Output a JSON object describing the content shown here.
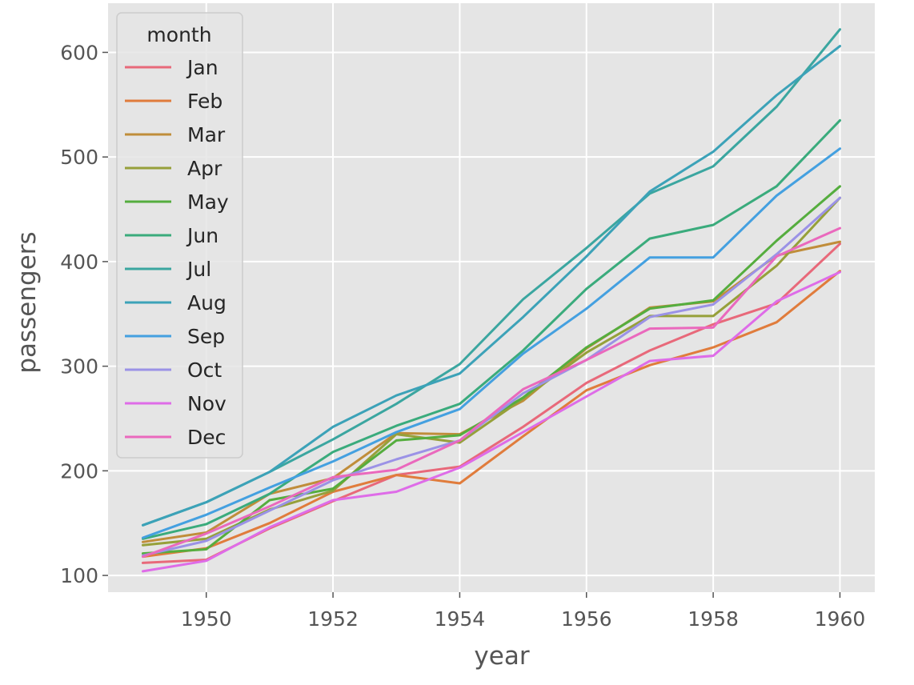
{
  "chart_data": {
    "type": "line",
    "title": "",
    "xlabel": "year",
    "ylabel": "passengers",
    "x": [
      1949,
      1950,
      1951,
      1952,
      1953,
      1954,
      1955,
      1956,
      1957,
      1958,
      1959,
      1960
    ],
    "xlim": [
      1948.45,
      1960.55
    ],
    "ylim": [
      84,
      647
    ],
    "xticks": [
      1950,
      1952,
      1954,
      1956,
      1958,
      1960
    ],
    "yticks": [
      100,
      200,
      300,
      400,
      500,
      600
    ],
    "grid": true,
    "legend": {
      "title": "month",
      "placement": "upper-left"
    },
    "series": [
      {
        "name": "Jan",
        "color": "#e8697a",
        "values": [
          112,
          115,
          145,
          171,
          196,
          204,
          242,
          284,
          315,
          340,
          360,
          417
        ]
      },
      {
        "name": "Feb",
        "color": "#e07c3c",
        "values": [
          118,
          126,
          150,
          180,
          196,
          188,
          233,
          277,
          301,
          318,
          342,
          391
        ]
      },
      {
        "name": "Mar",
        "color": "#c08d3a",
        "values": [
          132,
          141,
          178,
          193,
          236,
          235,
          267,
          317,
          356,
          362,
          406,
          419
        ]
      },
      {
        "name": "Apr",
        "color": "#96a03a",
        "values": [
          129,
          135,
          163,
          181,
          235,
          227,
          269,
          313,
          348,
          348,
          396,
          461
        ]
      },
      {
        "name": "May",
        "color": "#55ad3e",
        "values": [
          121,
          125,
          172,
          183,
          229,
          234,
          270,
          318,
          355,
          363,
          420,
          472
        ]
      },
      {
        "name": "Jun",
        "color": "#3aab7c",
        "values": [
          135,
          149,
          178,
          218,
          243,
          264,
          315,
          374,
          422,
          435,
          472,
          535
        ]
      },
      {
        "name": "Jul",
        "color": "#3ba6a0",
        "values": [
          148,
          170,
          199,
          230,
          264,
          302,
          364,
          413,
          465,
          491,
          548,
          622
        ]
      },
      {
        "name": "Aug",
        "color": "#3ca2b8",
        "values": [
          148,
          170,
          199,
          242,
          272,
          293,
          347,
          405,
          467,
          505,
          559,
          606
        ]
      },
      {
        "name": "Sep",
        "color": "#44a0e0",
        "values": [
          136,
          158,
          184,
          209,
          237,
          259,
          312,
          355,
          404,
          404,
          463,
          508
        ]
      },
      {
        "name": "Oct",
        "color": "#9b92e6",
        "values": [
          119,
          133,
          162,
          191,
          211,
          229,
          274,
          306,
          347,
          359,
          407,
          461
        ]
      },
      {
        "name": "Nov",
        "color": "#de6ce8",
        "values": [
          104,
          114,
          146,
          172,
          180,
          203,
          237,
          271,
          305,
          310,
          362,
          390
        ]
      },
      {
        "name": "Dec",
        "color": "#ea69bd",
        "values": [
          118,
          140,
          166,
          194,
          201,
          229,
          278,
          306,
          336,
          337,
          405,
          432
        ]
      }
    ]
  }
}
